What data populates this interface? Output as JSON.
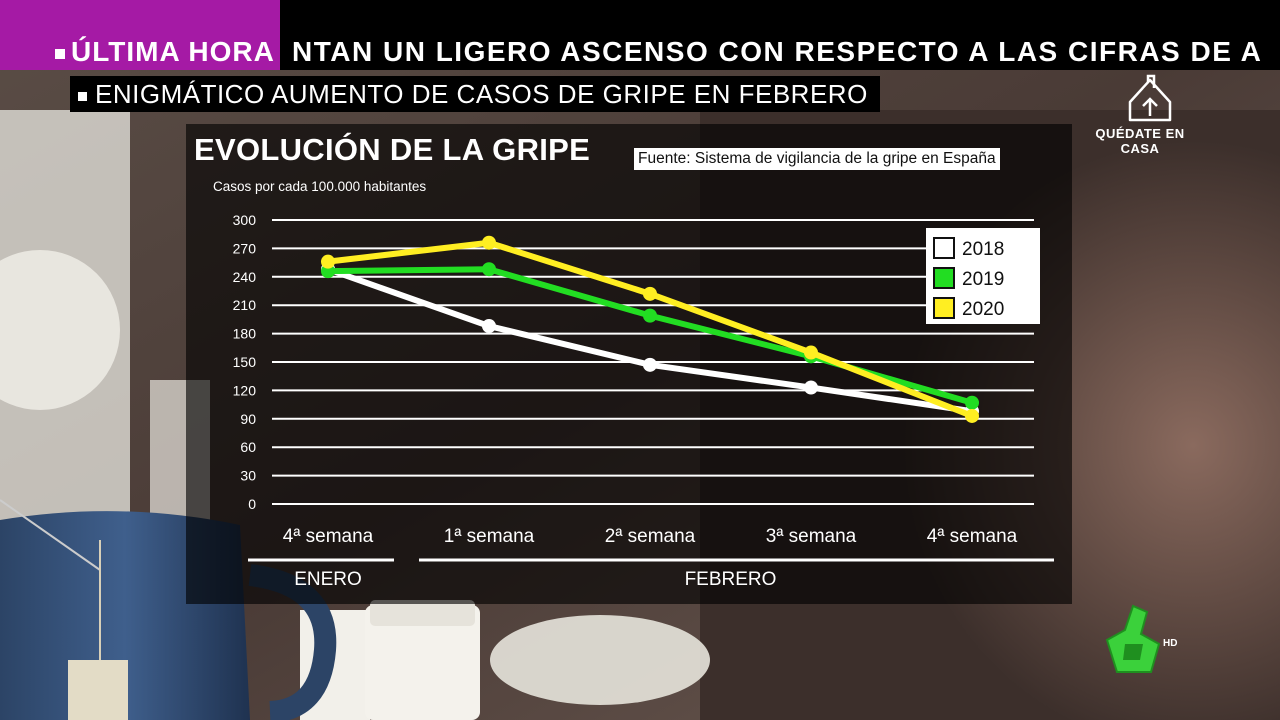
{
  "ticker": {
    "badge": "ÚLTIMA HORA",
    "scroll_text": "NTAN UN LIGERO ASCENSO CON RESPECTO A LAS CIFRAS DE A"
  },
  "headline": "ENIGMÁTICO AUMENTO DE CASOS DE GRIPE EN FEBRERO",
  "overlay": {
    "quedate": "QUÉDATE EN CASA",
    "channel_hd": "HD"
  },
  "colors": {
    "magenta": "#a51aa5",
    "y2018": "#ffffff",
    "y2019": "#22dd22",
    "y2020": "#ffee22"
  },
  "chart_data": {
    "type": "line",
    "title": "EVOLUCIÓN DE LA GRIPE",
    "source": "Fuente: Sistema de vigilancia de la gripe en España",
    "ylabel": "Casos por cada 100.000 habitantes",
    "ylim": [
      0,
      300
    ],
    "yticks": [
      0,
      30,
      60,
      90,
      120,
      150,
      180,
      210,
      240,
      270,
      300
    ],
    "categories": [
      "4ª semana",
      "1ª semana",
      "2ª semana",
      "3ª semana",
      "4ª semana"
    ],
    "groups": [
      {
        "label": "ENERO",
        "span": [
          0,
          0
        ]
      },
      {
        "label": "FEBRERO",
        "span": [
          1,
          4
        ]
      }
    ],
    "legend_position": "top-right",
    "grid": true,
    "series": [
      {
        "name": "2018",
        "color": "#ffffff",
        "values": [
          248,
          188,
          147,
          123,
          98
        ]
      },
      {
        "name": "2019",
        "color": "#22dd22",
        "values": [
          246,
          248,
          199,
          156,
          107
        ]
      },
      {
        "name": "2020",
        "color": "#ffee22",
        "values": [
          256,
          276,
          222,
          160,
          93
        ]
      }
    ]
  }
}
